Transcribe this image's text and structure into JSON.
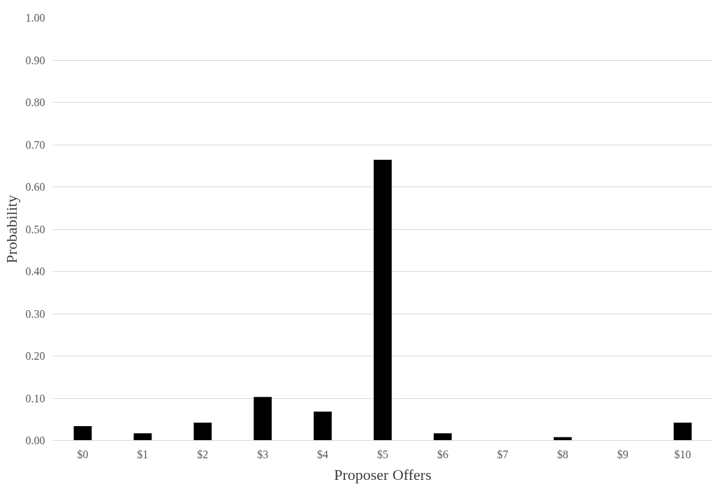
{
  "chart_data": {
    "type": "bar",
    "xlabel": "Proposer Offers",
    "ylabel": "Probability",
    "categories": [
      "$0",
      "$1",
      "$2",
      "$3",
      "$4",
      "$5",
      "$6",
      "$7",
      "$8",
      "$9",
      "$10"
    ],
    "values": [
      0.034,
      0.017,
      0.042,
      0.103,
      0.068,
      0.664,
      0.017,
      0,
      0.008,
      0,
      0.042
    ],
    "color": "#000000",
    "ylim": [
      0,
      1
    ],
    "yticks": [
      {
        "value": 0,
        "label": "0.00"
      },
      {
        "value": 0.1,
        "label": "0.10"
      },
      {
        "value": 0.2,
        "label": "0.20"
      },
      {
        "value": 0.3,
        "label": "0.30"
      },
      {
        "value": 0.4,
        "label": "0.40"
      },
      {
        "value": 0.5,
        "label": "0.50"
      },
      {
        "value": 0.6,
        "label": "0.60"
      },
      {
        "value": 0.7,
        "label": "0.70"
      },
      {
        "value": 0.8,
        "label": "0.80"
      },
      {
        "value": 0.9,
        "label": "0.90"
      },
      {
        "value": 1,
        "label": "1.00"
      }
    ],
    "grid": "y"
  }
}
